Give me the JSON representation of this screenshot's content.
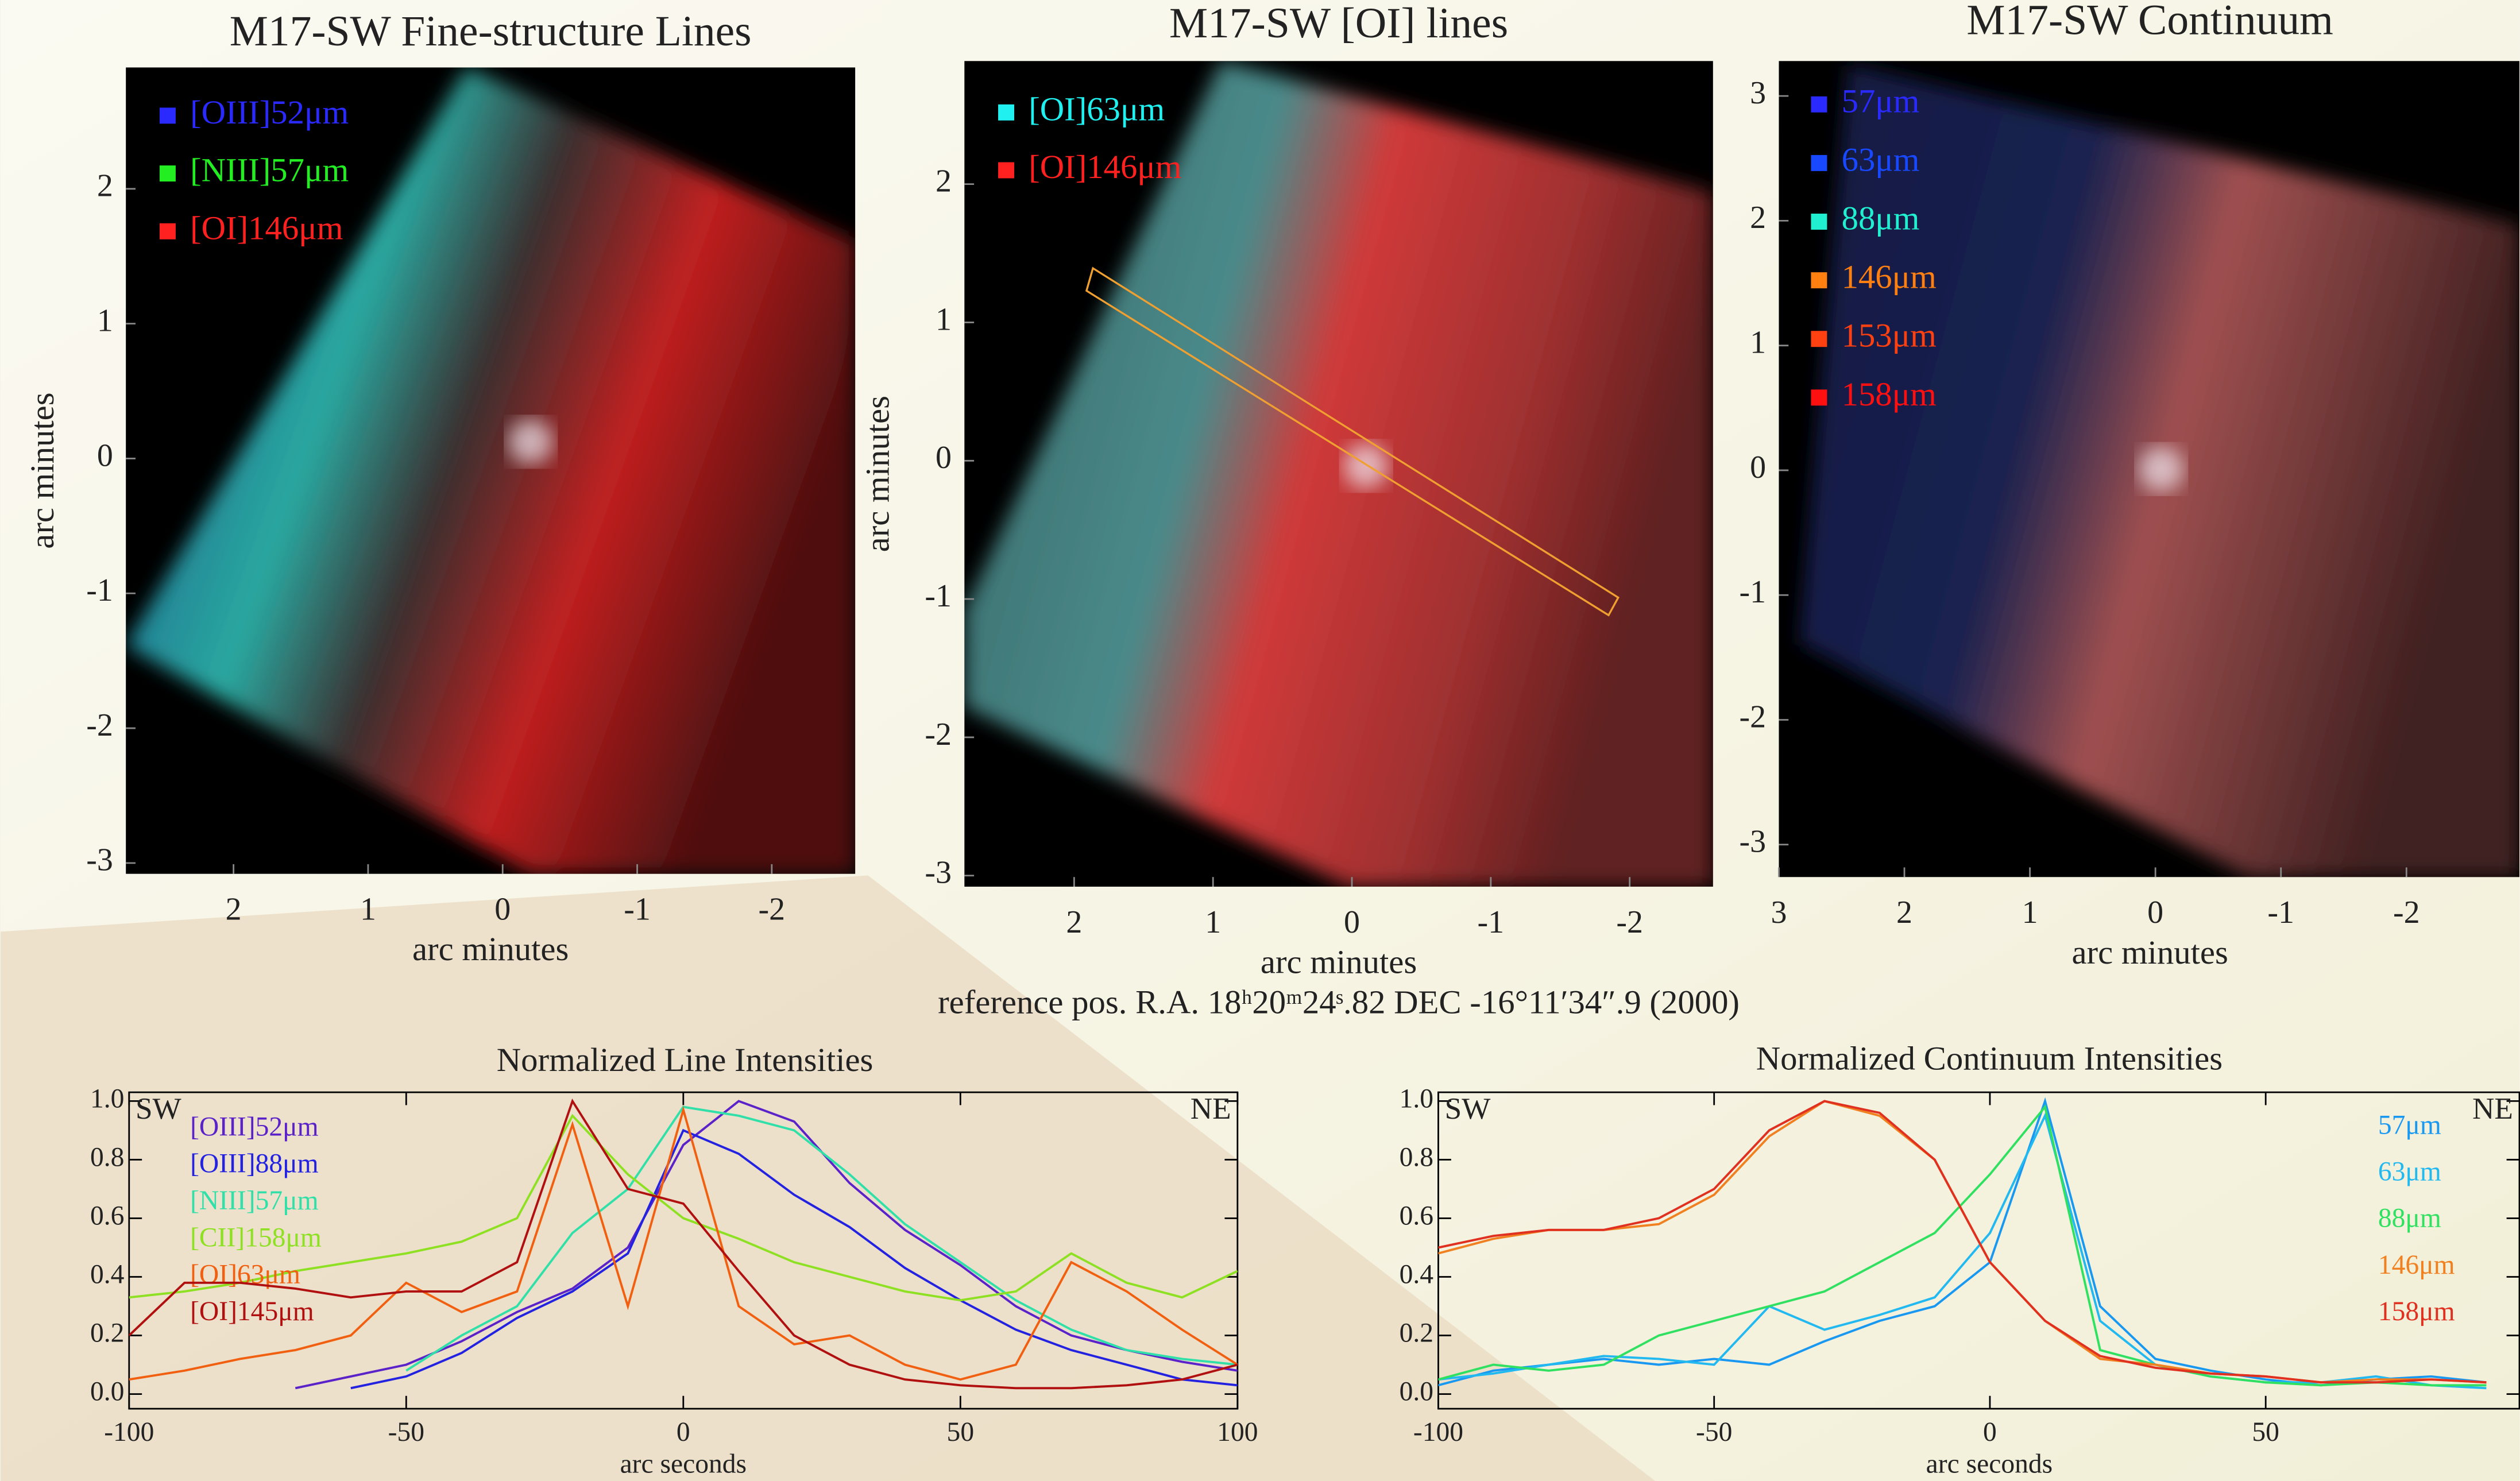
{
  "caption": "reference pos.  R.A. 18ʰ20ᵐ24ˢ.82  DEC  -16°11′34″.9  (2000)",
  "chart_data": [
    {
      "type": "image",
      "title": "M17-SW Fine-structure Lines",
      "xlabel": "arc minutes",
      "ylabel": "arc minutes",
      "xlim": [
        2.8,
        -2.62
      ],
      "ylim": [
        -3.08,
        2.9
      ],
      "xticks": [
        2,
        1,
        0,
        -1,
        -2
      ],
      "yticks": [
        2,
        1,
        0,
        -1,
        -2,
        -3
      ],
      "legend": [
        {
          "name": "[OIII]52μm",
          "color": "#2a2aff"
        },
        {
          "name": "[NIII]57μm",
          "color": "#22ee22"
        },
        {
          "name": "[OI]146μm",
          "color": "#ff2020"
        }
      ]
    },
    {
      "type": "image",
      "title": "M17-SW [OI] lines",
      "xlabel": "arc minutes",
      "ylabel": "arc minutes",
      "xlim": [
        2.79,
        -2.6
      ],
      "ylim": [
        -3.08,
        2.89
      ],
      "xticks": [
        2,
        1,
        0,
        -1,
        -2
      ],
      "yticks": [
        2,
        1,
        0,
        -1,
        -2,
        -3
      ],
      "legend": [
        {
          "name": "[OI]63μm",
          "color": "#20f0f0"
        },
        {
          "name": "[OI]146μm",
          "color": "#ff2020"
        }
      ]
    },
    {
      "type": "image",
      "title": "M17-SW Continuum",
      "xlabel": "arc minutes",
      "xlim": [
        3,
        -2.9
      ],
      "ylim": [
        -3.26,
        3.28
      ],
      "xticks": [
        3,
        2,
        1,
        0,
        -1,
        -2
      ],
      "yticks": [
        3,
        2,
        1,
        0,
        -1,
        -2,
        -3
      ],
      "legend": [
        {
          "name": "57μm",
          "color": "#2a2aff"
        },
        {
          "name": "63μm",
          "color": "#1848ff"
        },
        {
          "name": "88μm",
          "color": "#20f0d0"
        },
        {
          "name": "146μm",
          "color": "#ff8010"
        },
        {
          "name": "153μm",
          "color": "#ff4010"
        },
        {
          "name": "158μm",
          "color": "#ff1010"
        }
      ]
    },
    {
      "type": "line",
      "title": "Normalized Line Intensities",
      "xlabel": "arc seconds",
      "x": [
        -100,
        -90,
        -80,
        -70,
        -60,
        -50,
        -40,
        -30,
        -20,
        -10,
        0,
        10,
        20,
        30,
        40,
        50,
        60,
        70,
        80,
        90,
        100
      ],
      "xlim": [
        -100,
        100
      ],
      "ylim": [
        -0.05,
        1.03
      ],
      "xticks": [
        -100,
        -50,
        0,
        50,
        100
      ],
      "yticks": [
        {
          "value": 0,
          "label": "0.0"
        },
        0.2,
        0.4,
        0.6,
        0.8,
        {
          "value": 1,
          "label": "1.0"
        }
      ],
      "annotations": [
        "SW",
        "NE"
      ],
      "series": [
        {
          "name": "[OIII]52μm",
          "color": "#5a22c8",
          "values": [
            null,
            null,
            null,
            0.02,
            0.06,
            0.1,
            0.18,
            0.28,
            0.36,
            0.5,
            0.85,
            1.0,
            0.93,
            0.72,
            0.56,
            0.44,
            0.3,
            0.2,
            0.15,
            0.11,
            0.08
          ]
        },
        {
          "name": "[OIII]88μm",
          "color": "#2222e0",
          "values": [
            null,
            null,
            null,
            null,
            0.02,
            0.06,
            0.14,
            0.26,
            0.35,
            0.48,
            0.9,
            0.82,
            0.68,
            0.57,
            0.43,
            0.32,
            0.22,
            0.15,
            0.1,
            0.05,
            0.03
          ]
        },
        {
          "name": "[NIII]57μm",
          "color": "#30e0a8",
          "values": [
            null,
            null,
            null,
            null,
            null,
            0.08,
            0.2,
            0.3,
            0.55,
            0.7,
            0.98,
            0.95,
            0.9,
            0.75,
            0.58,
            0.45,
            0.32,
            0.22,
            0.15,
            0.12,
            0.1
          ]
        },
        {
          "name": "[CII]158μm",
          "color": "#8ee022",
          "values": [
            0.33,
            0.35,
            0.38,
            0.42,
            0.45,
            0.48,
            0.52,
            0.6,
            0.95,
            0.75,
            0.6,
            0.53,
            0.45,
            0.4,
            0.35,
            0.32,
            0.35,
            0.48,
            0.38,
            0.33,
            0.42
          ]
        },
        {
          "name": "[OI]63μm",
          "color": "#f06010",
          "values": [
            0.05,
            0.08,
            0.12,
            0.15,
            0.2,
            0.38,
            0.28,
            0.35,
            0.92,
            0.3,
            0.97,
            0.3,
            0.17,
            0.2,
            0.1,
            0.05,
            0.1,
            0.45,
            0.35,
            0.22,
            0.1
          ]
        },
        {
          "name": "[OI]145μm",
          "color": "#b01010",
          "values": [
            0.2,
            0.38,
            0.38,
            0.36,
            0.33,
            0.35,
            0.35,
            0.45,
            1.0,
            0.7,
            0.65,
            0.42,
            0.2,
            0.1,
            0.05,
            0.03,
            0.02,
            0.02,
            0.03,
            0.05,
            0.1
          ]
        }
      ]
    },
    {
      "type": "line",
      "title": "Normalized Continuum Intensities",
      "xlabel": "arc seconds",
      "x": [
        -100,
        -90,
        -80,
        -70,
        -60,
        -50,
        -40,
        -30,
        -20,
        -10,
        0,
        10,
        20,
        30,
        40,
        50,
        60,
        70,
        80,
        90
      ],
      "xlim": [
        -100,
        96
      ],
      "ylim": [
        -0.05,
        1.03
      ],
      "xticks": [
        -100,
        -50,
        0,
        50
      ],
      "yticks": [
        {
          "value": 0,
          "label": "0.0"
        },
        0.2,
        0.4,
        0.6,
        0.8,
        {
          "value": 1,
          "label": "1.0"
        }
      ],
      "annotations": [
        "SW",
        "NE"
      ],
      "series": [
        {
          "name": "57μm",
          "color": "#1898f0",
          "values": [
            0.03,
            0.08,
            0.1,
            0.12,
            0.1,
            0.12,
            0.1,
            0.18,
            0.25,
            0.3,
            0.45,
            1.0,
            0.3,
            0.12,
            0.08,
            0.05,
            0.03,
            0.05,
            0.06,
            0.04
          ]
        },
        {
          "name": "63μm",
          "color": "#22b8f0",
          "values": [
            0.05,
            0.07,
            0.1,
            0.13,
            0.12,
            0.1,
            0.3,
            0.22,
            0.27,
            0.33,
            0.55,
            0.95,
            0.25,
            0.1,
            0.06,
            0.04,
            0.04,
            0.06,
            0.03,
            0.02
          ]
        },
        {
          "name": "88μm",
          "color": "#30e060",
          "values": [
            0.05,
            0.1,
            0.08,
            0.1,
            0.2,
            0.25,
            0.3,
            0.35,
            0.45,
            0.55,
            0.75,
            0.98,
            0.15,
            0.1,
            0.06,
            0.04,
            0.03,
            0.04,
            0.03,
            0.03
          ]
        },
        {
          "name": "146μm",
          "color": "#f08020",
          "values": [
            0.48,
            0.53,
            0.56,
            0.56,
            0.58,
            0.68,
            0.88,
            1.0,
            0.95,
            0.8,
            0.45,
            0.25,
            0.12,
            0.1,
            0.07,
            0.06,
            0.04,
            0.05,
            0.05,
            0.04
          ]
        },
        {
          "name": "158μm",
          "color": "#e03020",
          "values": [
            0.5,
            0.54,
            0.56,
            0.56,
            0.6,
            0.7,
            0.9,
            1.0,
            0.96,
            0.8,
            0.45,
            0.25,
            0.13,
            0.09,
            0.07,
            0.06,
            0.04,
            0.04,
            0.05,
            0.04
          ]
        }
      ]
    }
  ]
}
